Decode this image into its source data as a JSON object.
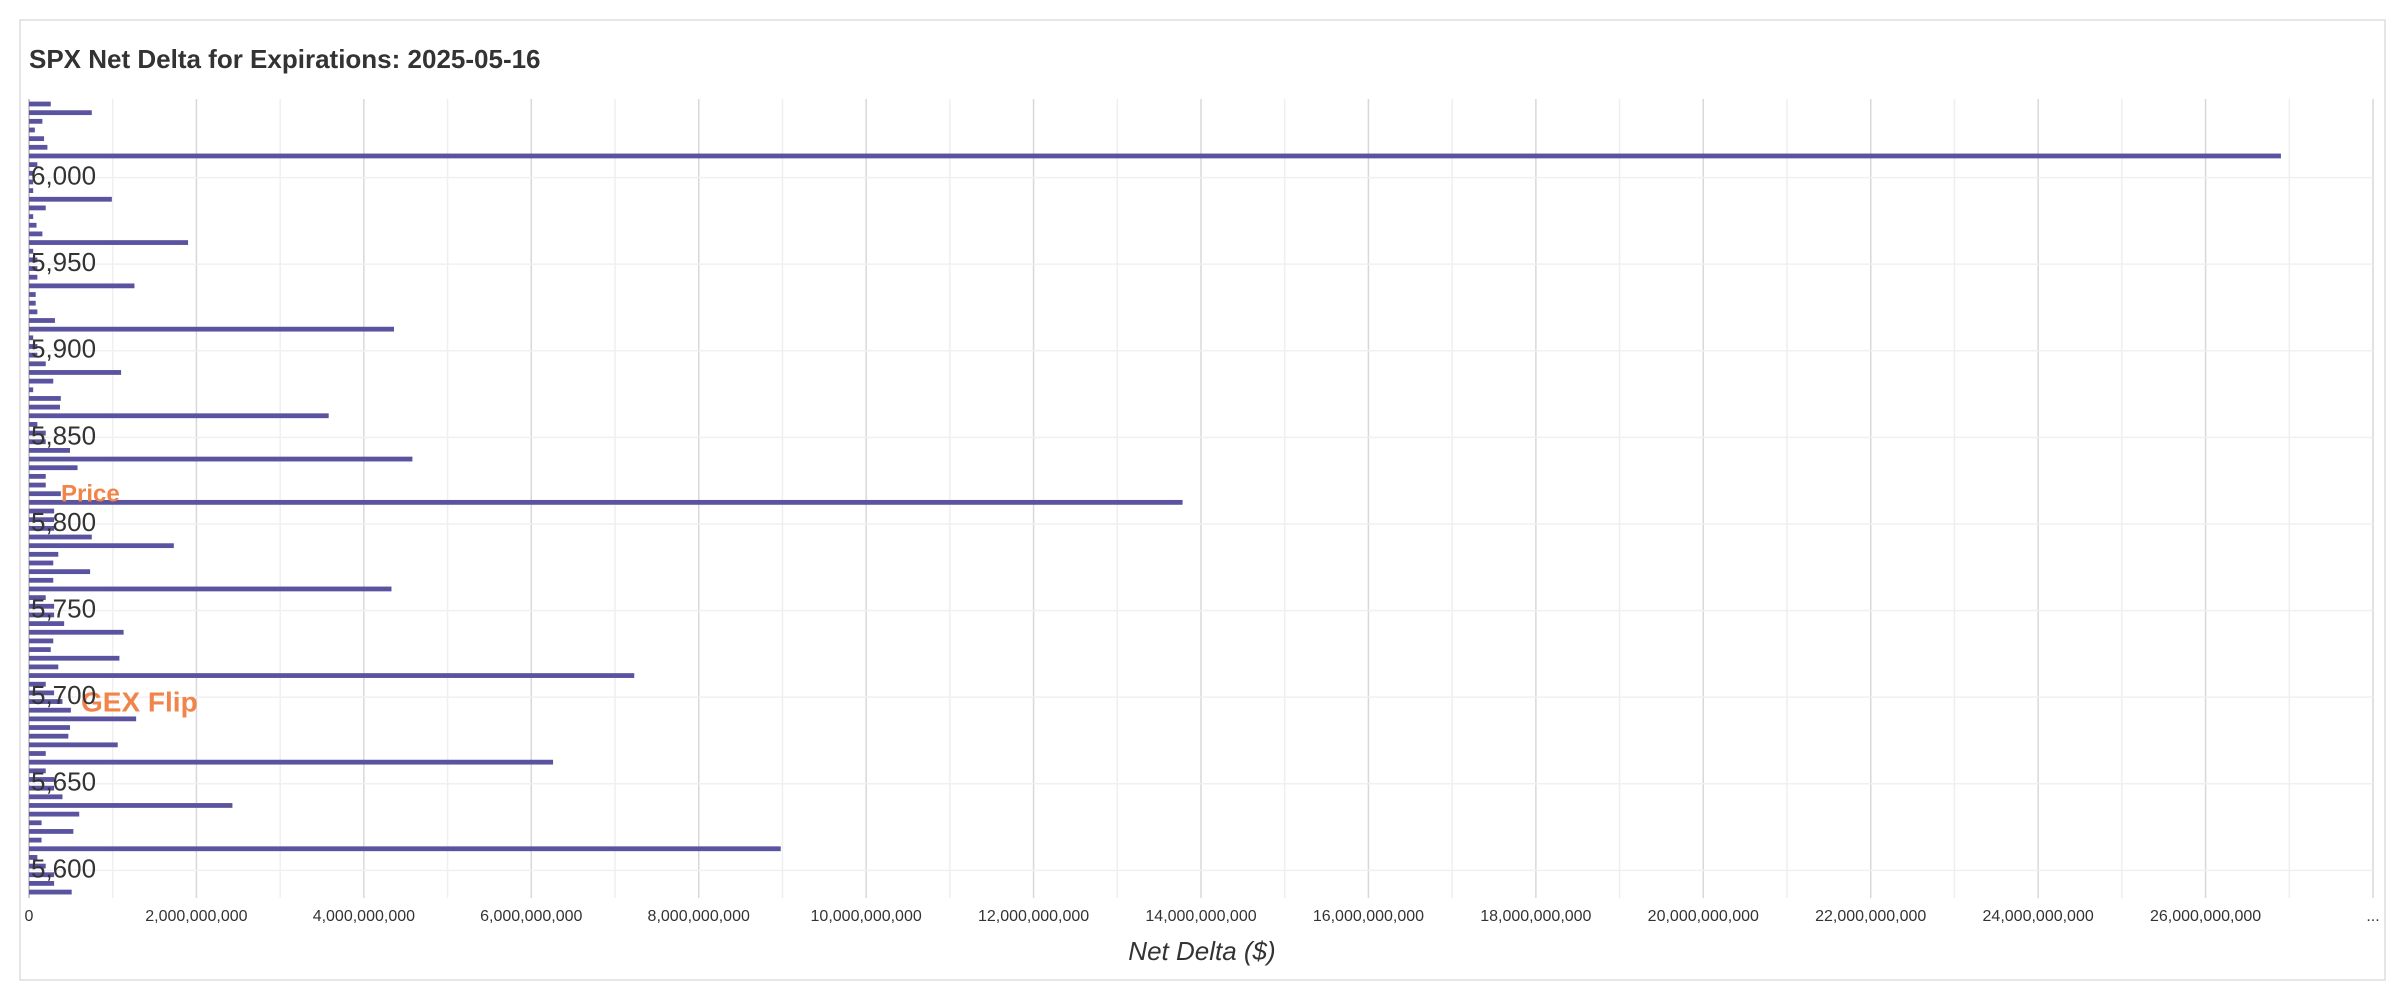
{
  "chart_data": {
    "type": "hbar",
    "title": "SPX Net Delta for Expirations: 2025-05-16",
    "x_label": "Net Delta ($)",
    "annotations": [
      "Price",
      "GEX Flip"
    ],
    "color": "#5a54a0",
    "grid": true,
    "categories": [
      null,
      null,
      null,
      null,
      null,
      null,
      null,
      null,
      "6,000",
      null,
      null,
      null,
      null,
      null,
      null,
      null,
      null,
      null,
      "5,950",
      null,
      null,
      null,
      null,
      null,
      null,
      null,
      null,
      null,
      "5,900",
      null,
      null,
      null,
      null,
      null,
      null,
      null,
      null,
      null,
      "5,850",
      null,
      null,
      null,
      null,
      null,
      null,
      null,
      null,
      null,
      "5,800",
      null,
      null,
      null,
      null,
      null,
      null,
      null,
      null,
      null,
      "5,750",
      null,
      null,
      null,
      null,
      null,
      null,
      null,
      null,
      null,
      "5,700",
      null,
      null,
      null,
      null,
      null,
      null,
      null,
      null,
      null,
      "5,650",
      null,
      null,
      null,
      null,
      null,
      null,
      null,
      null,
      null,
      "5,600",
      null,
      null,
      null
    ],
    "values": [
      260000000,
      750000000,
      160000000,
      70000000,
      180000000,
      220000000,
      26900000000,
      100000000,
      50000000,
      50000000,
      50000000,
      990000000,
      200000000,
      50000000,
      90000000,
      160000000,
      1900000000,
      50000000,
      100000000,
      100000000,
      100000000,
      1260000000,
      80000000,
      80000000,
      100000000,
      310000000,
      4360000000,
      50000000,
      100000000,
      100000000,
      200000000,
      1100000000,
      290000000,
      50000000,
      380000000,
      370000000,
      3580000000,
      100000000,
      200000000,
      200000000,
      490000000,
      4580000000,
      580000000,
      200000000,
      200000000,
      380000000,
      13780000000,
      300000000,
      300000000,
      300000000,
      750000000,
      1730000000,
      350000000,
      290000000,
      730000000,
      290000000,
      4330000000,
      200000000,
      300000000,
      300000000,
      420000000,
      1130000000,
      290000000,
      260000000,
      1080000000,
      350000000,
      7230000000,
      200000000,
      300000000,
      400000000,
      500000000,
      1280000000,
      490000000,
      470000000,
      1060000000,
      200000000,
      6260000000,
      200000000,
      300000000,
      300000000,
      400000000,
      2430000000,
      600000000,
      150000000,
      530000000,
      150000000,
      8980000000,
      100000000,
      200000000,
      300000000,
      300000000,
      510000000
    ],
    "xlim": [
      0,
      28000000000
    ],
    "xticks": [
      0,
      {
        "value": 2000000000,
        "label": "2,000,000,000"
      },
      {
        "value": 4000000000,
        "label": "4,000,000,000"
      },
      {
        "value": 6000000000,
        "label": "6,000,000,000"
      },
      {
        "value": 8000000000,
        "label": "8,000,000,000"
      },
      {
        "value": 10000000000,
        "label": "10,000,000,000"
      },
      {
        "value": 12000000000,
        "label": "12,000,000,000"
      },
      {
        "value": 14000000000,
        "label": "14,000,000,000"
      },
      {
        "value": 16000000000,
        "label": "16,000,000,000"
      },
      {
        "value": 18000000000,
        "label": "18,000,000,000"
      },
      {
        "value": 20000000000,
        "label": "20,000,000,000"
      },
      {
        "value": 22000000000,
        "label": "22,000,000,000"
      },
      {
        "value": 24000000000,
        "label": "24,000,000,000"
      },
      {
        "value": 26000000000,
        "label": "26,000,000,000"
      },
      {
        "value": 28000000000,
        "label": "..."
      }
    ]
  }
}
